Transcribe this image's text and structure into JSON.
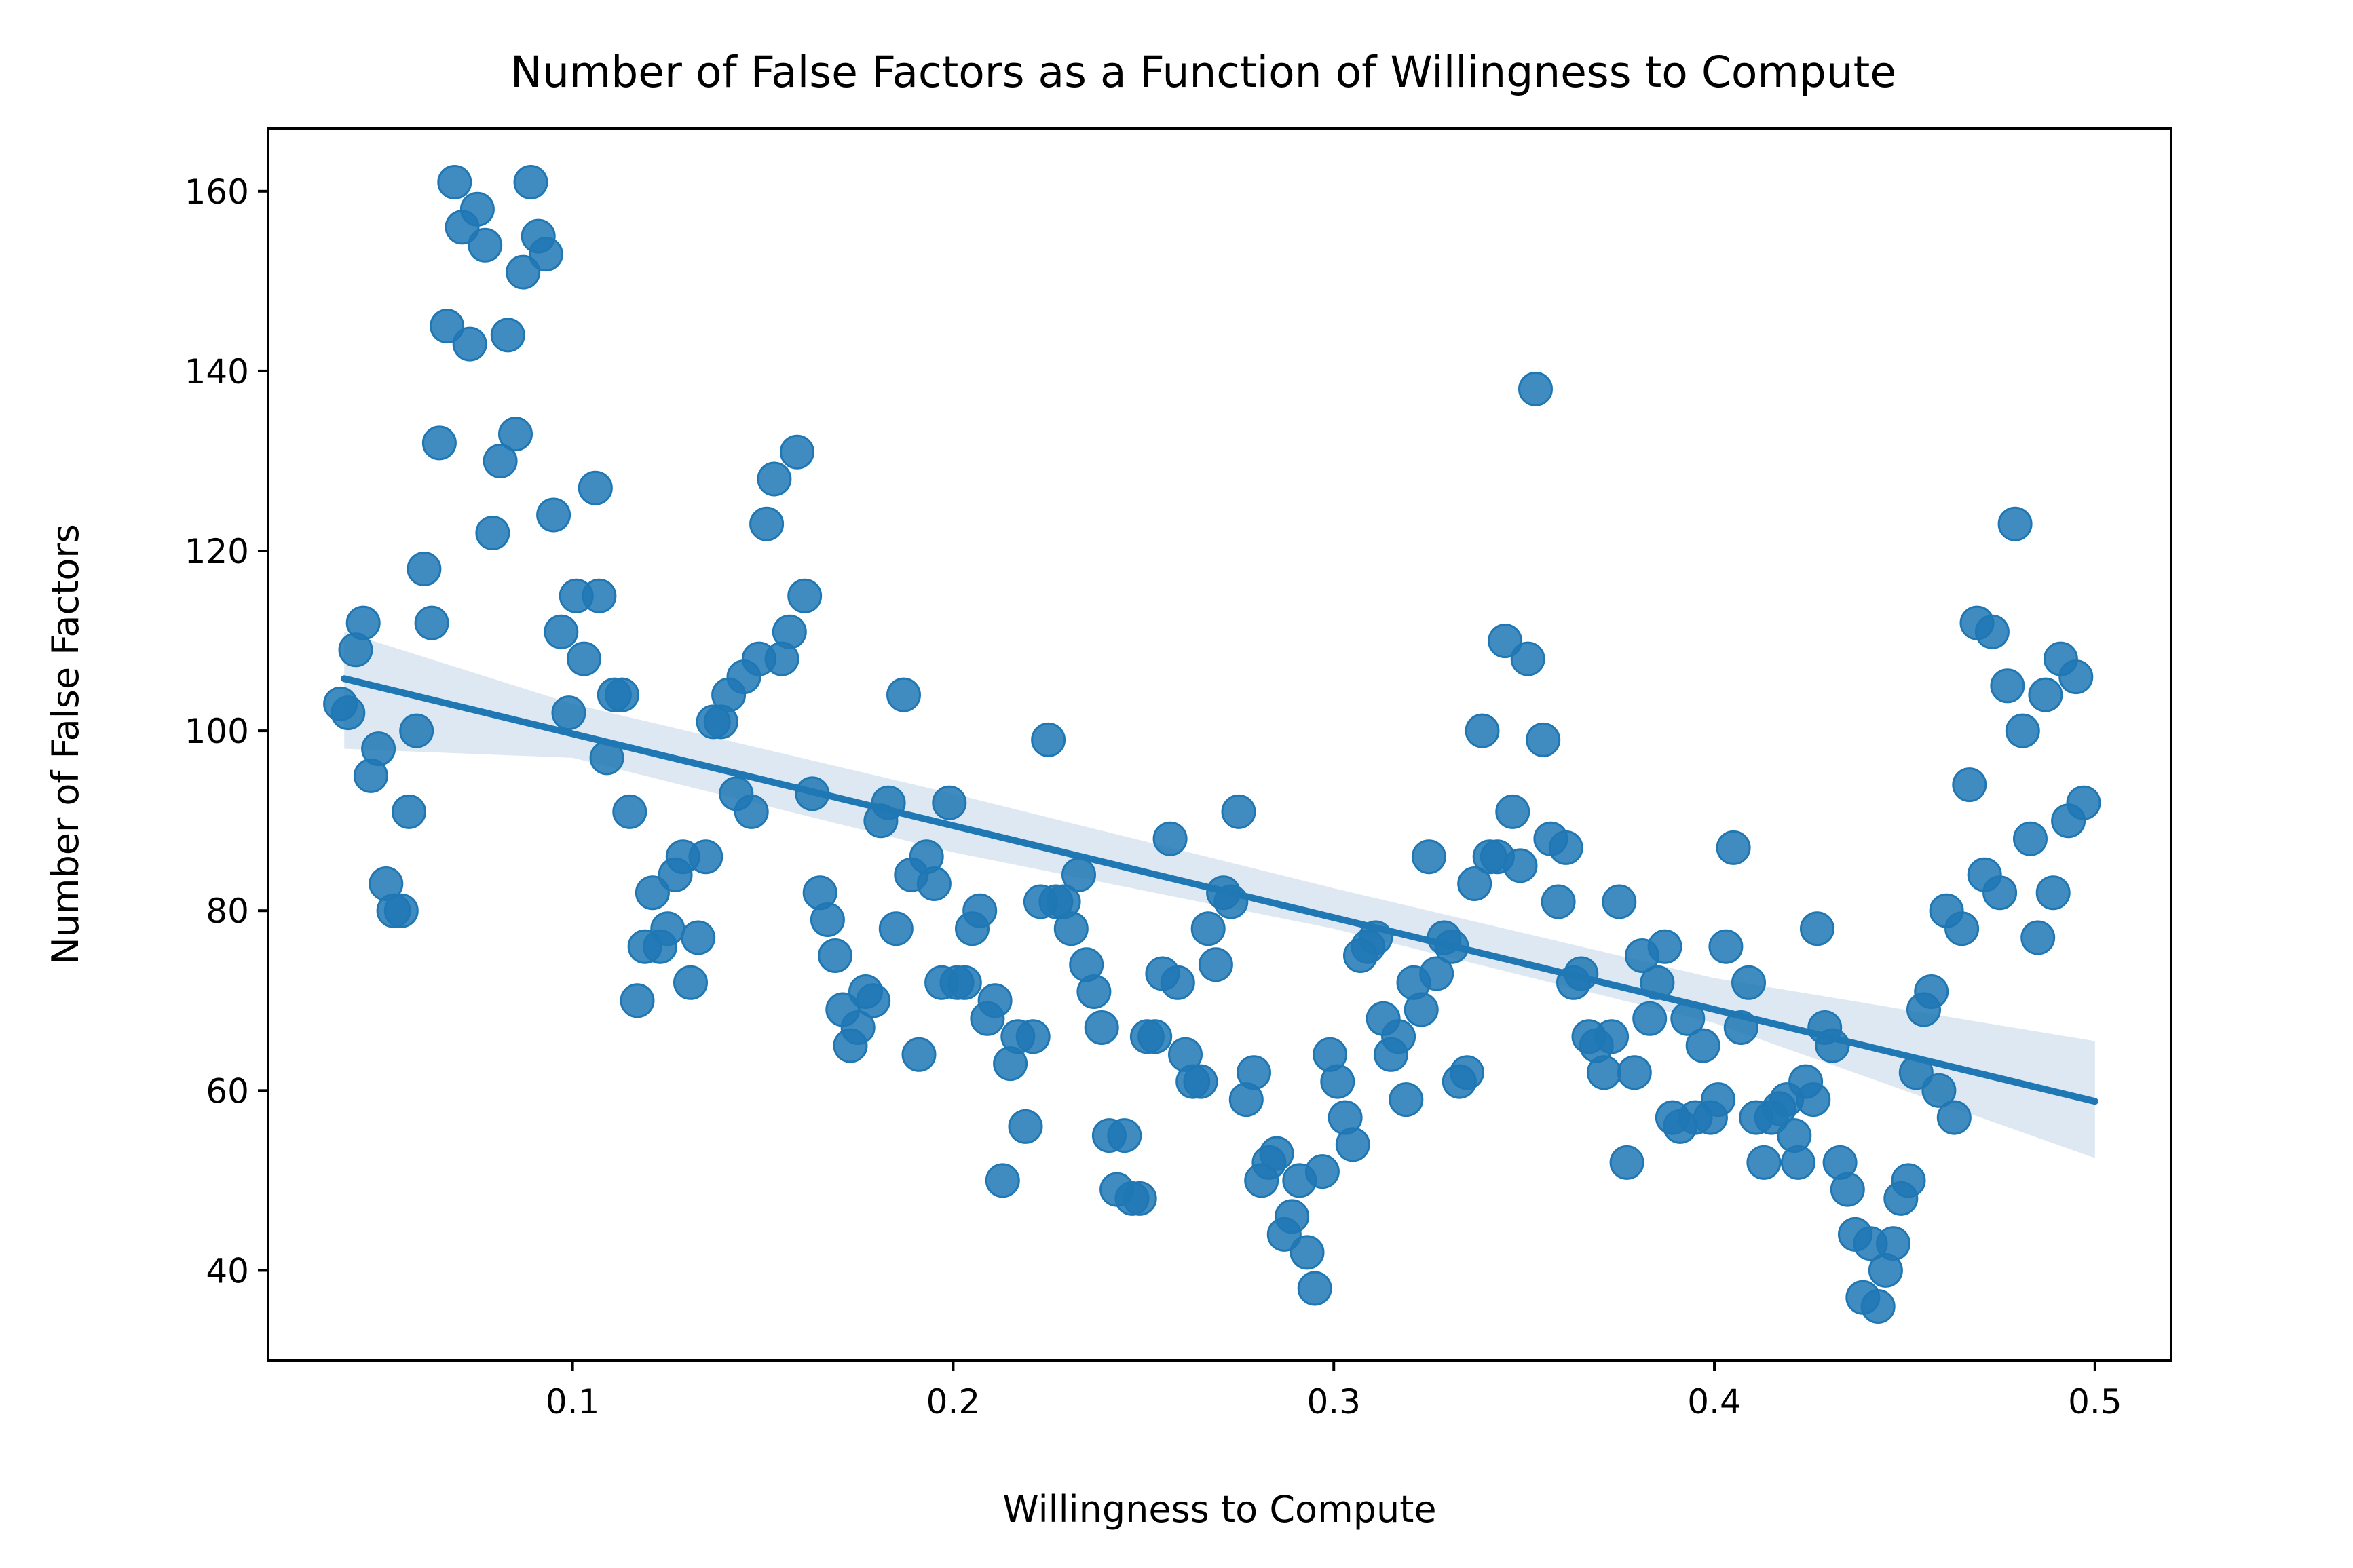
{
  "chart_data": {
    "type": "scatter",
    "title": "Number of False Factors as a Function of Willingness to Compute",
    "xlabel": "Willingness to Compute",
    "ylabel": "Number of False Factors",
    "xlim": [
      0.02,
      0.52
    ],
    "ylim": [
      30,
      167
    ],
    "x_ticks": [
      "0.1",
      "0.2",
      "0.3",
      "0.4",
      "0.5"
    ],
    "y_ticks": [
      "40",
      "60",
      "80",
      "100",
      "120",
      "140",
      "160"
    ],
    "grid": false,
    "legend": "none",
    "colors": {
      "points": "#1f77b4",
      "line": "#1f77b4",
      "band": "#c6d8ea"
    },
    "regression": {
      "x": [
        0.04,
        0.5
      ],
      "y": [
        105.8,
        58.8
      ]
    },
    "confidence_band": {
      "x": [
        0.04,
        0.1,
        0.2,
        0.3,
        0.4,
        0.5
      ],
      "upper": [
        111,
        103,
        93,
        82.5,
        72.5,
        65.5
      ],
      "lower": [
        98,
        97,
        86.5,
        78,
        67.5,
        52.5
      ]
    },
    "points": [
      [
        0.039,
        103
      ],
      [
        0.041,
        102
      ],
      [
        0.043,
        109
      ],
      [
        0.045,
        112
      ],
      [
        0.047,
        95
      ],
      [
        0.049,
        98
      ],
      [
        0.051,
        83
      ],
      [
        0.053,
        80
      ],
      [
        0.055,
        80
      ],
      [
        0.057,
        91
      ],
      [
        0.059,
        100
      ],
      [
        0.061,
        118
      ],
      [
        0.063,
        112
      ],
      [
        0.065,
        132
      ],
      [
        0.067,
        145
      ],
      [
        0.069,
        161
      ],
      [
        0.071,
        156
      ],
      [
        0.073,
        143
      ],
      [
        0.075,
        158
      ],
      [
        0.077,
        154
      ],
      [
        0.079,
        122
      ],
      [
        0.081,
        130
      ],
      [
        0.083,
        144
      ],
      [
        0.085,
        133
      ],
      [
        0.087,
        151
      ],
      [
        0.089,
        161
      ],
      [
        0.091,
        155
      ],
      [
        0.093,
        153
      ],
      [
        0.095,
        124
      ],
      [
        0.097,
        111
      ],
      [
        0.099,
        102
      ],
      [
        0.101,
        115
      ],
      [
        0.103,
        108
      ],
      [
        0.106,
        127
      ],
      [
        0.107,
        115
      ],
      [
        0.109,
        97
      ],
      [
        0.111,
        104
      ],
      [
        0.113,
        104
      ],
      [
        0.115,
        91
      ],
      [
        0.117,
        70
      ],
      [
        0.119,
        76
      ],
      [
        0.121,
        82
      ],
      [
        0.123,
        76
      ],
      [
        0.125,
        78
      ],
      [
        0.127,
        84
      ],
      [
        0.129,
        86
      ],
      [
        0.131,
        72
      ],
      [
        0.133,
        77
      ],
      [
        0.135,
        86
      ],
      [
        0.137,
        101
      ],
      [
        0.139,
        101
      ],
      [
        0.141,
        104
      ],
      [
        0.143,
        93
      ],
      [
        0.145,
        106
      ],
      [
        0.147,
        91
      ],
      [
        0.149,
        108
      ],
      [
        0.151,
        123
      ],
      [
        0.153,
        128
      ],
      [
        0.155,
        108
      ],
      [
        0.157,
        111
      ],
      [
        0.159,
        131
      ],
      [
        0.161,
        115
      ],
      [
        0.163,
        93
      ],
      [
        0.165,
        82
      ],
      [
        0.167,
        79
      ],
      [
        0.169,
        75
      ],
      [
        0.171,
        69
      ],
      [
        0.173,
        65
      ],
      [
        0.175,
        67
      ],
      [
        0.177,
        71
      ],
      [
        0.179,
        70
      ],
      [
        0.181,
        90
      ],
      [
        0.183,
        92
      ],
      [
        0.185,
        78
      ],
      [
        0.187,
        104
      ],
      [
        0.189,
        84
      ],
      [
        0.191,
        64
      ],
      [
        0.193,
        86
      ],
      [
        0.195,
        83
      ],
      [
        0.197,
        72
      ],
      [
        0.199,
        92
      ],
      [
        0.201,
        72
      ],
      [
        0.203,
        72
      ],
      [
        0.205,
        78
      ],
      [
        0.207,
        80
      ],
      [
        0.209,
        68
      ],
      [
        0.211,
        70
      ],
      [
        0.213,
        50
      ],
      [
        0.215,
        63
      ],
      [
        0.217,
        66
      ],
      [
        0.219,
        56
      ],
      [
        0.221,
        66
      ],
      [
        0.223,
        81
      ],
      [
        0.225,
        99
      ],
      [
        0.227,
        81
      ],
      [
        0.229,
        81
      ],
      [
        0.231,
        78
      ],
      [
        0.233,
        84
      ],
      [
        0.235,
        74
      ],
      [
        0.237,
        71
      ],
      [
        0.239,
        67
      ],
      [
        0.241,
        55
      ],
      [
        0.243,
        49
      ],
      [
        0.245,
        55
      ],
      [
        0.247,
        48
      ],
      [
        0.249,
        48
      ],
      [
        0.251,
        66
      ],
      [
        0.253,
        66
      ],
      [
        0.255,
        73
      ],
      [
        0.257,
        88
      ],
      [
        0.259,
        72
      ],
      [
        0.261,
        64
      ],
      [
        0.263,
        61
      ],
      [
        0.265,
        61
      ],
      [
        0.267,
        78
      ],
      [
        0.269,
        74
      ],
      [
        0.271,
        82
      ],
      [
        0.273,
        81
      ],
      [
        0.275,
        91
      ],
      [
        0.277,
        59
      ],
      [
        0.279,
        62
      ],
      [
        0.281,
        50
      ],
      [
        0.283,
        52
      ],
      [
        0.285,
        53
      ],
      [
        0.287,
        44
      ],
      [
        0.289,
        46
      ],
      [
        0.291,
        50
      ],
      [
        0.293,
        42
      ],
      [
        0.295,
        38
      ],
      [
        0.297,
        51
      ],
      [
        0.299,
        64
      ],
      [
        0.301,
        61
      ],
      [
        0.303,
        57
      ],
      [
        0.305,
        54
      ],
      [
        0.307,
        75
      ],
      [
        0.309,
        76
      ],
      [
        0.311,
        77
      ],
      [
        0.313,
        68
      ],
      [
        0.315,
        64
      ],
      [
        0.317,
        66
      ],
      [
        0.319,
        59
      ],
      [
        0.321,
        72
      ],
      [
        0.323,
        69
      ],
      [
        0.325,
        86
      ],
      [
        0.327,
        73
      ],
      [
        0.329,
        77
      ],
      [
        0.331,
        76
      ],
      [
        0.333,
        61
      ],
      [
        0.335,
        62
      ],
      [
        0.337,
        83
      ],
      [
        0.339,
        100
      ],
      [
        0.341,
        86
      ],
      [
        0.343,
        86
      ],
      [
        0.345,
        110
      ],
      [
        0.347,
        91
      ],
      [
        0.349,
        85
      ],
      [
        0.351,
        108
      ],
      [
        0.353,
        138
      ],
      [
        0.355,
        99
      ],
      [
        0.357,
        88
      ],
      [
        0.359,
        81
      ],
      [
        0.361,
        87
      ],
      [
        0.363,
        72
      ],
      [
        0.365,
        73
      ],
      [
        0.367,
        66
      ],
      [
        0.369,
        65
      ],
      [
        0.371,
        62
      ],
      [
        0.373,
        66
      ],
      [
        0.375,
        81
      ],
      [
        0.377,
        52
      ],
      [
        0.379,
        62
      ],
      [
        0.381,
        75
      ],
      [
        0.383,
        68
      ],
      [
        0.385,
        72
      ],
      [
        0.387,
        76
      ],
      [
        0.389,
        57
      ],
      [
        0.391,
        56
      ],
      [
        0.393,
        68
      ],
      [
        0.395,
        57
      ],
      [
        0.397,
        65
      ],
      [
        0.399,
        57
      ],
      [
        0.401,
        59
      ],
      [
        0.403,
        76
      ],
      [
        0.405,
        87
      ],
      [
        0.407,
        67
      ],
      [
        0.409,
        72
      ],
      [
        0.411,
        57
      ],
      [
        0.413,
        52
      ],
      [
        0.415,
        57
      ],
      [
        0.417,
        58
      ],
      [
        0.419,
        59
      ],
      [
        0.421,
        55
      ],
      [
        0.422,
        52
      ],
      [
        0.424,
        61
      ],
      [
        0.426,
        59
      ],
      [
        0.427,
        78
      ],
      [
        0.429,
        67
      ],
      [
        0.431,
        65
      ],
      [
        0.433,
        52
      ],
      [
        0.435,
        49
      ],
      [
        0.437,
        44
      ],
      [
        0.439,
        37
      ],
      [
        0.441,
        43
      ],
      [
        0.443,
        36
      ],
      [
        0.445,
        40
      ],
      [
        0.447,
        43
      ],
      [
        0.449,
        48
      ],
      [
        0.451,
        50
      ],
      [
        0.453,
        62
      ],
      [
        0.455,
        69
      ],
      [
        0.457,
        71
      ],
      [
        0.459,
        60
      ],
      [
        0.461,
        80
      ],
      [
        0.463,
        57
      ],
      [
        0.465,
        78
      ],
      [
        0.467,
        94
      ],
      [
        0.469,
        112
      ],
      [
        0.471,
        84
      ],
      [
        0.473,
        111
      ],
      [
        0.475,
        82
      ],
      [
        0.477,
        105
      ],
      [
        0.479,
        123
      ],
      [
        0.481,
        100
      ],
      [
        0.483,
        88
      ],
      [
        0.485,
        77
      ],
      [
        0.487,
        104
      ],
      [
        0.489,
        82
      ],
      [
        0.491,
        108
      ],
      [
        0.493,
        90
      ],
      [
        0.495,
        106
      ],
      [
        0.497,
        92
      ]
    ]
  }
}
